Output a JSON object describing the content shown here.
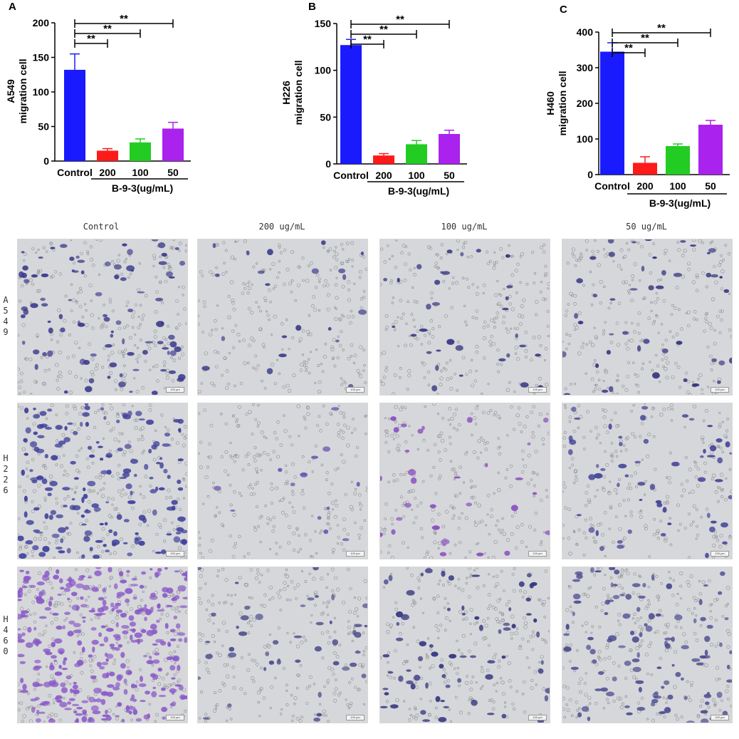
{
  "chart_data": [
    {
      "type": "bar",
      "panel": "A",
      "ylabel_line1": "A549",
      "ylabel_line2": "migration cell",
      "categories": [
        "Control",
        "200",
        "100",
        "50"
      ],
      "values": [
        132,
        15,
        27,
        47
      ],
      "errors": [
        23,
        3,
        5,
        9
      ],
      "colors": [
        "#1a1aff",
        "#ff1a1a",
        "#22cc22",
        "#aa22ee"
      ],
      "yticks": [
        0,
        50,
        100,
        150,
        200
      ],
      "ylim": [
        0,
        200
      ],
      "group_label": "B-9-3(ug/mL)",
      "significance": [
        {
          "from": 0,
          "to": 1,
          "label": "**"
        },
        {
          "from": 0,
          "to": 2,
          "label": "**"
        },
        {
          "from": 0,
          "to": 3,
          "label": "**"
        }
      ]
    },
    {
      "type": "bar",
      "panel": "B",
      "ylabel_line1": "H226",
      "ylabel_line2": "migration cell",
      "categories": [
        "Control",
        "200",
        "100",
        "50"
      ],
      "values": [
        127,
        9,
        21,
        32
      ],
      "errors": [
        6,
        2,
        4,
        4
      ],
      "colors": [
        "#1a1aff",
        "#ff1a1a",
        "#22cc22",
        "#aa22ee"
      ],
      "yticks": [
        0,
        50,
        100,
        150
      ],
      "ylim": [
        0,
        150
      ],
      "group_label": "B-9-3(ug/mL)",
      "significance": [
        {
          "from": 0,
          "to": 1,
          "label": "**"
        },
        {
          "from": 0,
          "to": 2,
          "label": "**"
        },
        {
          "from": 0,
          "to": 3,
          "label": "**"
        }
      ]
    },
    {
      "type": "bar",
      "panel": "C",
      "ylabel_line1": "H460",
      "ylabel_line2": "migration cell",
      "categories": [
        "Control",
        "200",
        "100",
        "50"
      ],
      "values": [
        345,
        33,
        80,
        140
      ],
      "errors": [
        25,
        17,
        6,
        12
      ],
      "colors": [
        "#1a1aff",
        "#ff1a1a",
        "#22cc22",
        "#aa22ee"
      ],
      "yticks": [
        0,
        100,
        200,
        300,
        400
      ],
      "ylim": [
        0,
        400
      ],
      "group_label": "B-9-3(ug/mL)",
      "significance": [
        {
          "from": 0,
          "to": 1,
          "label": "**"
        },
        {
          "from": 0,
          "to": 2,
          "label": "**"
        },
        {
          "from": 0,
          "to": 3,
          "label": "**"
        }
      ]
    }
  ],
  "micrographs": {
    "columns": [
      "Control",
      "200 ug/mL",
      "100 ug/mL",
      "50 ug/mL"
    ],
    "rows": [
      {
        "label": "A549",
        "density": [
          90,
          22,
          32,
          45
        ],
        "stain": [
          "#3b3a8c",
          "#3d3d8a",
          "#34357f",
          "#34347f"
        ]
      },
      {
        "label": "H226",
        "density": [
          170,
          14,
          30,
          55
        ],
        "stain": [
          "#3d3f9a",
          "#6a4fb0",
          "#8a4cc0",
          "#3f3f95"
        ]
      },
      {
        "label": "H460",
        "density": [
          340,
          45,
          70,
          110
        ],
        "stain": [
          "#8a5ac8",
          "#4c4e8c",
          "#33357e",
          "#4a4a8f"
        ]
      }
    ],
    "scale_label": "100 µm",
    "background": "#d6d7da"
  }
}
